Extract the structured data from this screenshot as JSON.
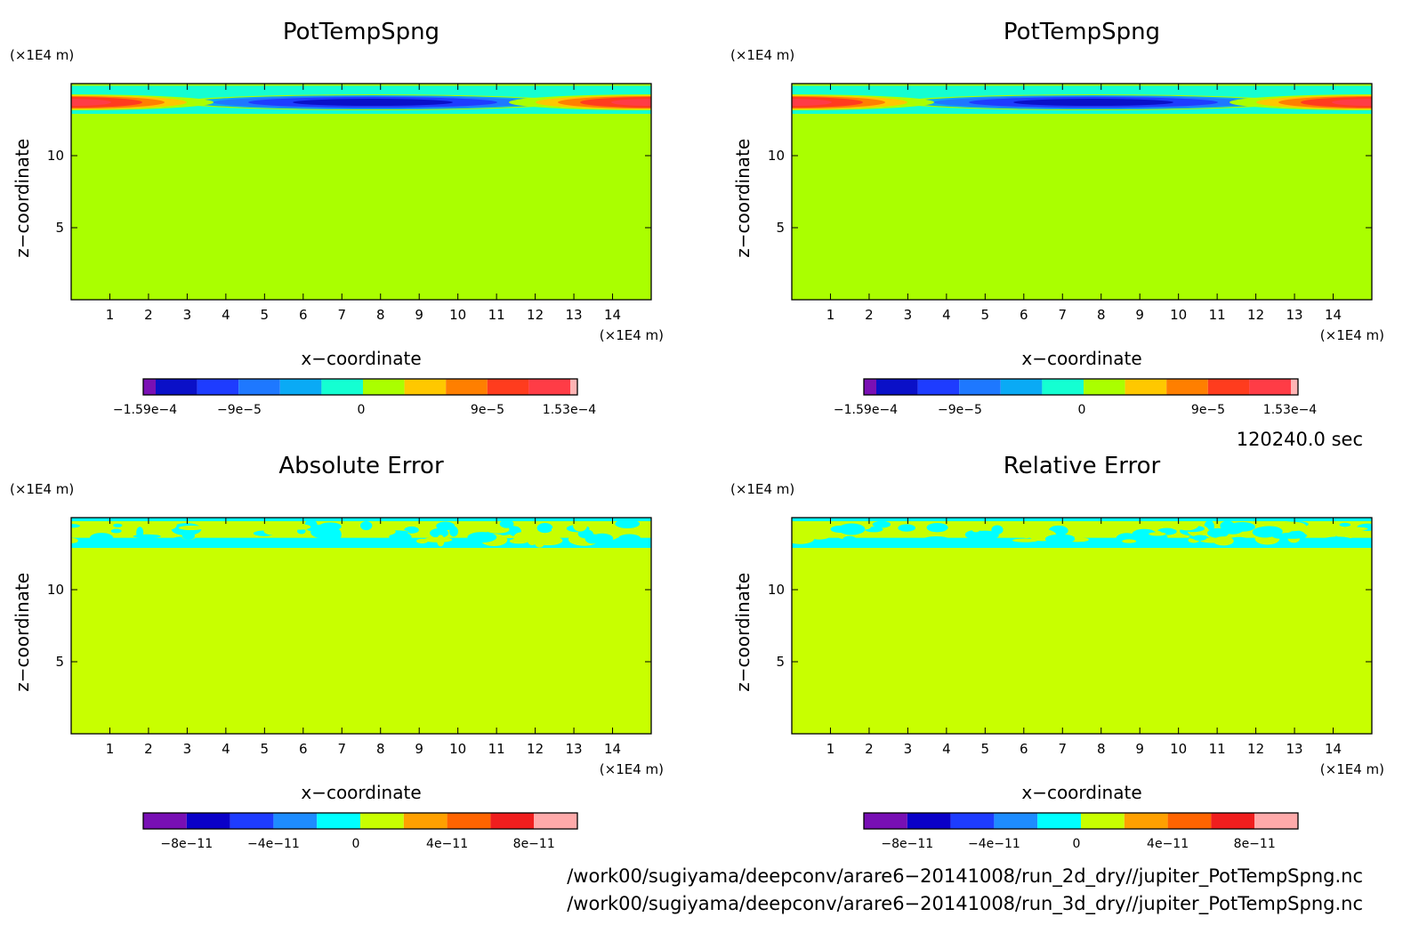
{
  "chart_data": [
    {
      "type": "heatmap",
      "title": "PotTempSpng",
      "xlabel": "x−coordinate",
      "ylabel": "z−coordinate",
      "x_unit": "(×1E4 m)",
      "y_unit": "(×1E4 m)",
      "xlim": [
        0,
        15
      ],
      "ylim": [
        0,
        15
      ],
      "xticks": [
        "1",
        "2",
        "3",
        "4",
        "5",
        "6",
        "7",
        "8",
        "9",
        "10",
        "11",
        "12",
        "13",
        "14"
      ],
      "yticks": [
        "5",
        "10"
      ],
      "field": "pottemp",
      "colorbar": {
        "colors": [
          "#7a10b4",
          "#0a10c8",
          "#1e3cff",
          "#1e78ff",
          "#0aaaf5",
          "#14ffd2",
          "#aaff00",
          "#ffc800",
          "#ff7f00",
          "#ff3c1e",
          "#ff3c46",
          "#ffb4b4"
        ],
        "tick_labels": [
          "−1.59e−4",
          "−9e−5",
          "0",
          "9e−5",
          "1.53e−4"
        ],
        "tick_values": [
          -0.000159,
          -9e-05,
          0,
          9e-05,
          0.000153
        ],
        "range": [
          -0.000159,
          0.000153
        ]
      },
      "description_values": {
        "center_min": -0.000159,
        "edge_max": 0.000153,
        "background": 0
      }
    },
    {
      "type": "heatmap",
      "title": "PotTempSpng",
      "xlabel": "x−coordinate",
      "ylabel": "z−coordinate",
      "x_unit": "(×1E4 m)",
      "y_unit": "(×1E4 m)",
      "xlim": [
        0,
        15
      ],
      "ylim": [
        0,
        15
      ],
      "xticks": [
        "1",
        "2",
        "3",
        "4",
        "5",
        "6",
        "7",
        "8",
        "9",
        "10",
        "11",
        "12",
        "13",
        "14"
      ],
      "yticks": [
        "5",
        "10"
      ],
      "field": "pottemp",
      "colorbar": {
        "colors": [
          "#7a10b4",
          "#0a10c8",
          "#1e3cff",
          "#1e78ff",
          "#0aaaf5",
          "#14ffd2",
          "#aaff00",
          "#ffc800",
          "#ff7f00",
          "#ff3c1e",
          "#ff3c46",
          "#ffb4b4"
        ],
        "tick_labels": [
          "−1.59e−4",
          "−9e−5",
          "0",
          "9e−5",
          "1.53e−4"
        ],
        "tick_values": [
          -0.000159,
          -9e-05,
          0,
          9e-05,
          0.000153
        ],
        "range": [
          -0.000159,
          0.000153
        ]
      }
    },
    {
      "type": "heatmap",
      "title": "Absolute Error",
      "xlabel": "x−coordinate",
      "ylabel": "z−coordinate",
      "x_unit": "(×1E4 m)",
      "y_unit": "(×1E4 m)",
      "xlim": [
        0,
        15
      ],
      "ylim": [
        0,
        15
      ],
      "xticks": [
        "1",
        "2",
        "3",
        "4",
        "5",
        "6",
        "7",
        "8",
        "9",
        "10",
        "11",
        "12",
        "13",
        "14"
      ],
      "yticks": [
        "5",
        "10"
      ],
      "field": "error",
      "colorbar": {
        "colors": [
          "#780fb4",
          "#0a00c8",
          "#1e3cff",
          "#1e8cff",
          "#00ffff",
          "#c8ff00",
          "#ffa000",
          "#ff6400",
          "#f01e1e",
          "#ffaaaa"
        ],
        "tick_labels": [
          "−8e−11",
          "−4e−11",
          "0",
          "4e−11",
          "8e−11"
        ],
        "tick_values": [
          -8e-11,
          -4e-11,
          0,
          4e-11,
          8e-11
        ],
        "range": [
          -1e-10,
          1e-10
        ]
      }
    },
    {
      "type": "heatmap",
      "title": "Relative Error",
      "xlabel": "x−coordinate",
      "ylabel": "z−coordinate",
      "x_unit": "(×1E4 m)",
      "y_unit": "(×1E4 m)",
      "xlim": [
        0,
        15
      ],
      "ylim": [
        0,
        15
      ],
      "xticks": [
        "1",
        "2",
        "3",
        "4",
        "5",
        "6",
        "7",
        "8",
        "9",
        "10",
        "11",
        "12",
        "13",
        "14"
      ],
      "yticks": [
        "5",
        "10"
      ],
      "field": "error",
      "colorbar": {
        "colors": [
          "#780fb4",
          "#0a00c8",
          "#1e3cff",
          "#1e8cff",
          "#00ffff",
          "#c8ff00",
          "#ffa000",
          "#ff6400",
          "#f01e1e",
          "#ffaaaa"
        ],
        "tick_labels": [
          "−8e−11",
          "−4e−11",
          "0",
          "4e−11",
          "8e−11"
        ],
        "tick_values": [
          -8e-11,
          -4e-11,
          0,
          4e-11,
          8e-11
        ],
        "range": [
          -1e-10,
          1e-10
        ]
      }
    }
  ],
  "info": {
    "time": "120240.0 sec",
    "file_1": "/work00/sugiyama/deepconv/arare6−20141008/run_2d_dry//jupiter_PotTempSpng.nc",
    "file_2": "/work00/sugiyama/deepconv/arare6−20141008/run_3d_dry//jupiter_PotTempSpng.nc"
  }
}
